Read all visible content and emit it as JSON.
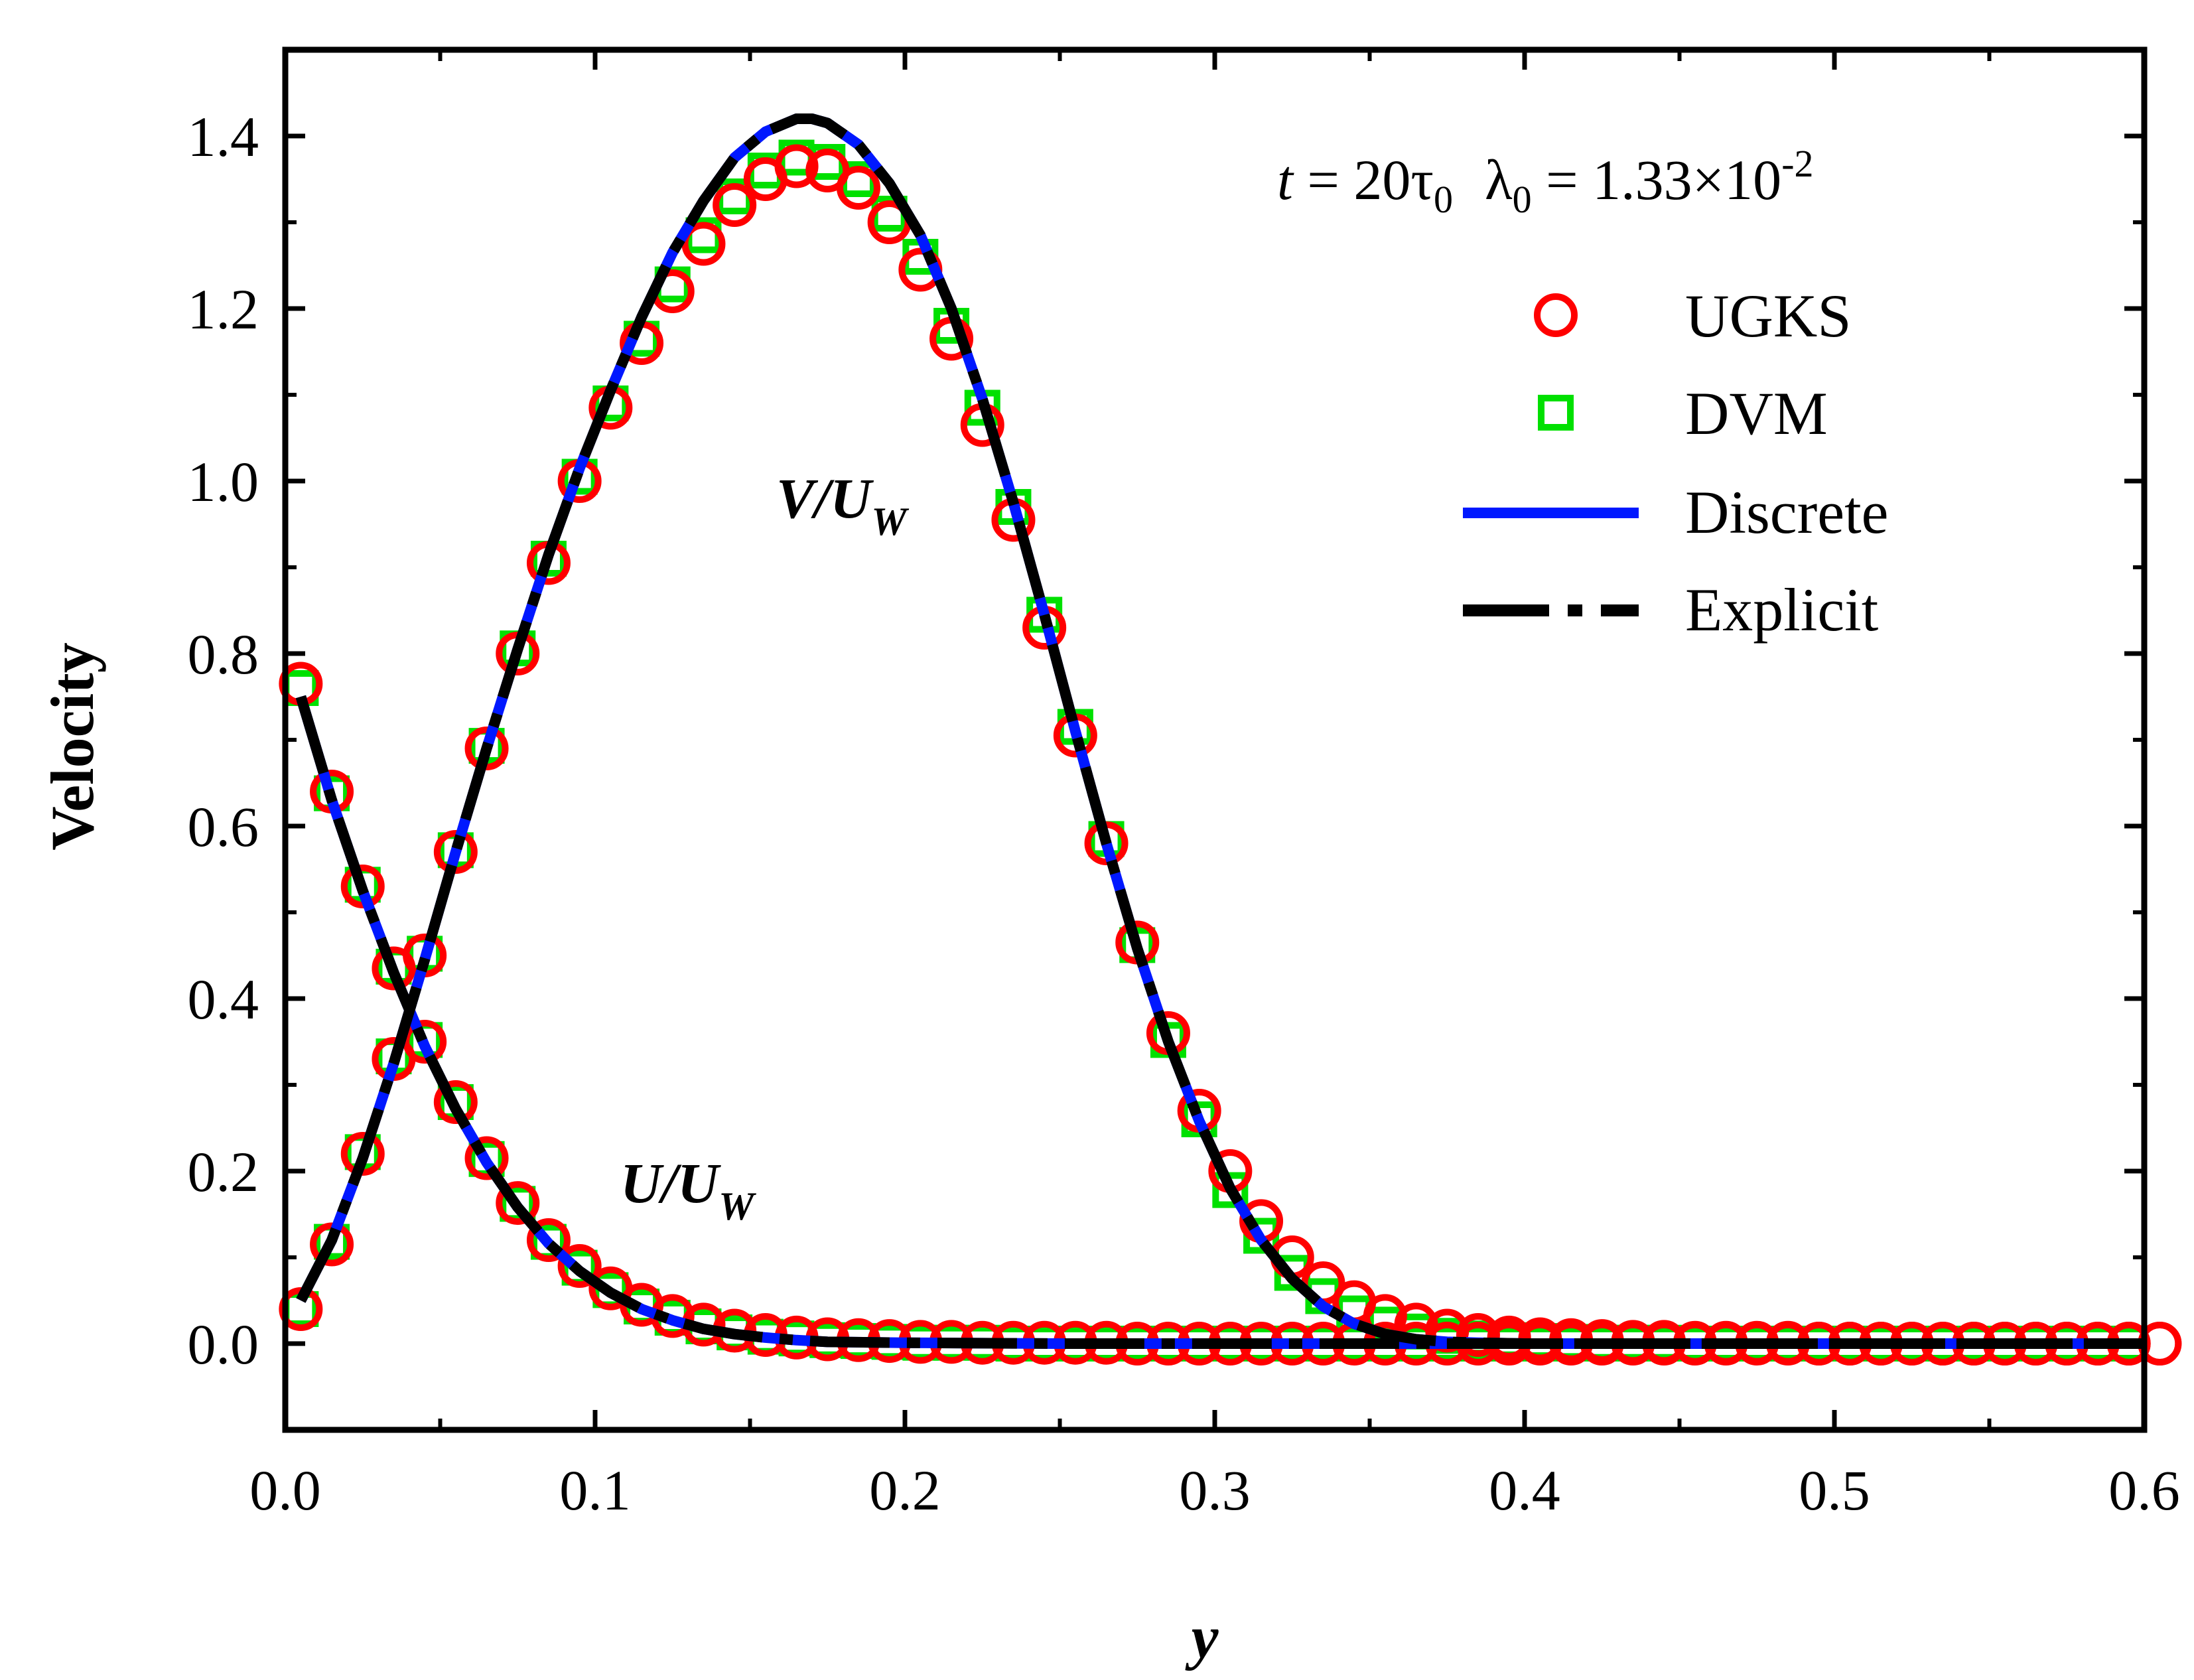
{
  "chart_data": {
    "type": "line",
    "title": "",
    "xlabel": "y",
    "ylabel": "Velocity",
    "xlim": [
      0.0,
      0.6
    ],
    "ylim": [
      -0.1,
      1.5
    ],
    "xticks": [
      {
        "value": 0.0,
        "label": "0.0"
      },
      {
        "value": 0.1,
        "label": "0.1"
      },
      {
        "value": 0.2,
        "label": "0.2"
      },
      {
        "value": 0.3,
        "label": "0.3"
      },
      {
        "value": 0.4,
        "label": "0.4"
      },
      {
        "value": 0.5,
        "label": "0.5"
      },
      {
        "value": 0.6,
        "label": "0.6"
      }
    ],
    "yticks": [
      {
        "value": 0.0,
        "label": "0.0"
      },
      {
        "value": 0.2,
        "label": "0.2"
      },
      {
        "value": 0.4,
        "label": "0.4"
      },
      {
        "value": 0.6,
        "label": "0.6"
      },
      {
        "value": 0.8,
        "label": "0.8"
      },
      {
        "value": 1.0,
        "label": "1.0"
      },
      {
        "value": 1.2,
        "label": "1.2"
      },
      {
        "value": 1.4,
        "label": "1.4"
      }
    ],
    "annotation": {
      "t_symbol": "t",
      "t_value": " = 20τ",
      "t_sub": "0",
      "lambda_symbol": "λ",
      "lambda_sub": "0",
      "lambda_value": " = 1.33×10",
      "lambda_sup": "-2"
    },
    "curve_labels": {
      "v": {
        "var": "V",
        "sep": "/",
        "base": "U",
        "sub": "W"
      },
      "u": {
        "var": "U",
        "sep": "/",
        "base": "U",
        "sub": "W"
      }
    },
    "legend": [
      {
        "name": "UGKS",
        "marker": "circle",
        "color": "#ff0000"
      },
      {
        "name": "DVM",
        "marker": "square",
        "color": "#00e000"
      },
      {
        "name": "Discrete",
        "marker": "solid-line",
        "color": "#0018ff"
      },
      {
        "name": "Explicit",
        "marker": "dash-dot-line",
        "color": "#000000"
      }
    ],
    "series": [
      {
        "name": "UGKS",
        "quantity": "U/U_W",
        "style": "circle",
        "color": "#ff0000",
        "x": [
          0.005,
          0.015,
          0.025,
          0.035,
          0.045,
          0.055,
          0.065,
          0.075,
          0.085,
          0.095,
          0.105,
          0.115,
          0.125,
          0.135,
          0.145,
          0.155,
          0.165,
          0.175,
          0.185,
          0.195,
          0.205,
          0.215,
          0.225,
          0.235,
          0.245,
          0.255,
          0.265,
          0.275,
          0.285,
          0.295,
          0.305,
          0.315,
          0.325,
          0.335,
          0.345,
          0.355,
          0.365,
          0.375,
          0.385,
          0.395,
          0.405,
          0.415,
          0.425,
          0.435,
          0.445,
          0.455,
          0.465,
          0.475,
          0.485,
          0.495,
          0.505,
          0.515,
          0.525,
          0.535,
          0.545,
          0.555,
          0.565,
          0.575,
          0.585,
          0.595,
          0.605
        ],
        "y": [
          0.765,
          0.64,
          0.53,
          0.435,
          0.35,
          0.28,
          0.215,
          0.163,
          0.12,
          0.09,
          0.064,
          0.045,
          0.032,
          0.022,
          0.015,
          0.01,
          0.007,
          0.005,
          0.004,
          0.003,
          0.002,
          0.002,
          0.001,
          0.001,
          0.001,
          0.001,
          0.001,
          0.0,
          0.0,
          0.0,
          0.0,
          0.0,
          0.0,
          0.0,
          0.0,
          0.0,
          0.0,
          0.0,
          0.0,
          0.0,
          0.0,
          0.0,
          0.0,
          0.0,
          0.0,
          0.0,
          0.0,
          0.0,
          0.0,
          0.0,
          0.0,
          0.0,
          0.0,
          0.0,
          0.0,
          0.0,
          0.0,
          0.0,
          0.0,
          0.0,
          0.0
        ]
      },
      {
        "name": "UGKS",
        "quantity": "V/U_W",
        "style": "circle",
        "color": "#ff0000",
        "x": [
          0.005,
          0.015,
          0.025,
          0.035,
          0.045,
          0.055,
          0.065,
          0.075,
          0.085,
          0.095,
          0.105,
          0.115,
          0.125,
          0.135,
          0.145,
          0.155,
          0.165,
          0.175,
          0.185,
          0.195,
          0.205,
          0.215,
          0.225,
          0.235,
          0.245,
          0.255,
          0.265,
          0.275,
          0.285,
          0.295,
          0.305,
          0.315,
          0.325,
          0.335,
          0.345,
          0.355,
          0.365,
          0.375,
          0.385,
          0.395,
          0.405,
          0.415,
          0.425,
          0.435,
          0.445,
          0.455,
          0.465,
          0.475,
          0.485,
          0.495,
          0.505,
          0.515,
          0.525,
          0.535,
          0.545,
          0.555,
          0.565,
          0.575,
          0.585,
          0.595,
          0.605
        ],
        "y": [
          0.04,
          0.115,
          0.22,
          0.33,
          0.45,
          0.57,
          0.69,
          0.8,
          0.905,
          1.0,
          1.085,
          1.16,
          1.22,
          1.275,
          1.32,
          1.35,
          1.365,
          1.36,
          1.34,
          1.3,
          1.245,
          1.165,
          1.065,
          0.955,
          0.83,
          0.705,
          0.58,
          0.465,
          0.36,
          0.27,
          0.2,
          0.142,
          0.1,
          0.07,
          0.048,
          0.032,
          0.022,
          0.015,
          0.01,
          0.007,
          0.005,
          0.004,
          0.003,
          0.002,
          0.002,
          0.001,
          0.001,
          0.001,
          0.001,
          0.0,
          0.0,
          0.0,
          0.0,
          0.0,
          0.0,
          0.0,
          0.0,
          0.0,
          0.0,
          0.0,
          0.0
        ]
      },
      {
        "name": "DVM",
        "quantity": "U/U_W",
        "style": "square",
        "color": "#00e000",
        "x": [
          0.005,
          0.015,
          0.025,
          0.035,
          0.045,
          0.055,
          0.065,
          0.075,
          0.085,
          0.095,
          0.105,
          0.115,
          0.125,
          0.135,
          0.145,
          0.155,
          0.165,
          0.175,
          0.185,
          0.195,
          0.205,
          0.215,
          0.225,
          0.235,
          0.245,
          0.255,
          0.265,
          0.275,
          0.285,
          0.295,
          0.305,
          0.315,
          0.325,
          0.335,
          0.345,
          0.355,
          0.365,
          0.375,
          0.385,
          0.395,
          0.405,
          0.415,
          0.425,
          0.435,
          0.445,
          0.455,
          0.465,
          0.475,
          0.485,
          0.495,
          0.505,
          0.515,
          0.525,
          0.535,
          0.545,
          0.555,
          0.565,
          0.575,
          0.585,
          0.595
        ],
        "y": [
          0.76,
          0.638,
          0.532,
          0.437,
          0.352,
          0.28,
          0.214,
          0.162,
          0.118,
          0.088,
          0.062,
          0.043,
          0.03,
          0.02,
          0.013,
          0.008,
          0.006,
          0.004,
          0.003,
          0.002,
          0.001,
          0.001,
          0.001,
          0.0,
          0.0,
          0.0,
          0.0,
          0.0,
          0.0,
          0.0,
          0.0,
          0.0,
          0.0,
          0.0,
          0.0,
          0.0,
          0.0,
          0.0,
          0.0,
          0.0,
          0.0,
          0.0,
          0.0,
          0.0,
          0.0,
          0.0,
          0.0,
          0.0,
          0.0,
          0.0,
          0.0,
          0.0,
          0.0,
          0.0,
          0.0,
          0.0,
          0.0,
          0.0,
          0.0,
          0.0
        ]
      },
      {
        "name": "DVM",
        "quantity": "V/U_W",
        "style": "square",
        "color": "#00e000",
        "x": [
          0.005,
          0.015,
          0.025,
          0.035,
          0.045,
          0.055,
          0.065,
          0.075,
          0.085,
          0.095,
          0.105,
          0.115,
          0.125,
          0.135,
          0.145,
          0.155,
          0.165,
          0.175,
          0.185,
          0.195,
          0.205,
          0.215,
          0.225,
          0.235,
          0.245,
          0.255,
          0.265,
          0.275,
          0.285,
          0.295,
          0.305,
          0.315,
          0.325,
          0.335,
          0.345,
          0.355,
          0.365,
          0.375,
          0.385,
          0.395,
          0.405,
          0.415,
          0.425,
          0.435,
          0.445,
          0.455,
          0.465,
          0.475,
          0.485,
          0.495,
          0.505,
          0.515,
          0.525,
          0.535,
          0.545,
          0.555,
          0.565,
          0.575,
          0.585,
          0.595
        ],
        "y": [
          0.04,
          0.118,
          0.222,
          0.333,
          0.452,
          0.572,
          0.693,
          0.806,
          0.91,
          1.005,
          1.09,
          1.165,
          1.228,
          1.285,
          1.33,
          1.36,
          1.375,
          1.37,
          1.35,
          1.31,
          1.26,
          1.18,
          1.085,
          0.97,
          0.845,
          0.715,
          0.585,
          0.462,
          0.352,
          0.26,
          0.178,
          0.125,
          0.082,
          0.055,
          0.035,
          0.022,
          0.014,
          0.009,
          0.006,
          0.004,
          0.003,
          0.002,
          0.001,
          0.001,
          0.001,
          0.0,
          0.0,
          0.0,
          0.0,
          0.0,
          0.0,
          0.0,
          0.0,
          0.0,
          0.0,
          0.0,
          0.0,
          0.0,
          0.0,
          0.0
        ]
      },
      {
        "name": "Discrete",
        "quantity": "U/U_W",
        "style": "solid",
        "color": "#0018ff",
        "x": [
          0.005,
          0.015,
          0.025,
          0.035,
          0.045,
          0.055,
          0.065,
          0.075,
          0.085,
          0.095,
          0.105,
          0.115,
          0.125,
          0.135,
          0.145,
          0.155,
          0.165,
          0.175,
          0.2,
          0.25,
          0.3,
          0.4,
          0.5,
          0.6
        ],
        "y": [
          0.75,
          0.63,
          0.525,
          0.43,
          0.345,
          0.272,
          0.21,
          0.158,
          0.116,
          0.084,
          0.059,
          0.04,
          0.027,
          0.017,
          0.011,
          0.007,
          0.004,
          0.002,
          0.001,
          0.0,
          0.0,
          0.0,
          0.0,
          0.0
        ]
      },
      {
        "name": "Discrete",
        "quantity": "V/U_W",
        "style": "solid",
        "color": "#0018ff",
        "x": [
          0.005,
          0.015,
          0.025,
          0.035,
          0.045,
          0.055,
          0.065,
          0.075,
          0.085,
          0.095,
          0.105,
          0.115,
          0.125,
          0.135,
          0.145,
          0.155,
          0.165,
          0.17,
          0.175,
          0.185,
          0.195,
          0.205,
          0.215,
          0.225,
          0.235,
          0.245,
          0.255,
          0.265,
          0.275,
          0.285,
          0.295,
          0.305,
          0.315,
          0.325,
          0.335,
          0.345,
          0.355,
          0.365,
          0.375,
          0.385,
          0.4,
          0.45,
          0.5,
          0.55,
          0.6
        ],
        "y": [
          0.05,
          0.12,
          0.215,
          0.325,
          0.445,
          0.57,
          0.69,
          0.805,
          0.915,
          1.015,
          1.105,
          1.19,
          1.265,
          1.325,
          1.375,
          1.405,
          1.42,
          1.42,
          1.415,
          1.39,
          1.345,
          1.285,
          1.2,
          1.095,
          0.975,
          0.845,
          0.71,
          0.58,
          0.458,
          0.35,
          0.258,
          0.18,
          0.12,
          0.075,
          0.043,
          0.023,
          0.011,
          0.005,
          0.002,
          0.001,
          0.0,
          0.0,
          0.0,
          0.0,
          0.0
        ]
      },
      {
        "name": "Explicit",
        "quantity": "U/U_W",
        "style": "dash-dot",
        "color": "#000000",
        "x": [
          0.005,
          0.015,
          0.025,
          0.035,
          0.045,
          0.055,
          0.065,
          0.075,
          0.085,
          0.095,
          0.105,
          0.115,
          0.125,
          0.135,
          0.145,
          0.155,
          0.165,
          0.175,
          0.2,
          0.25,
          0.3,
          0.4,
          0.5,
          0.6
        ],
        "y": [
          0.75,
          0.63,
          0.525,
          0.43,
          0.345,
          0.272,
          0.21,
          0.158,
          0.116,
          0.084,
          0.059,
          0.04,
          0.027,
          0.017,
          0.011,
          0.007,
          0.004,
          0.002,
          0.001,
          0.0,
          0.0,
          0.0,
          0.0,
          0.0
        ]
      },
      {
        "name": "Explicit",
        "quantity": "V/U_W",
        "style": "dash-dot",
        "color": "#000000",
        "x": [
          0.005,
          0.015,
          0.025,
          0.035,
          0.045,
          0.055,
          0.065,
          0.075,
          0.085,
          0.095,
          0.105,
          0.115,
          0.125,
          0.135,
          0.145,
          0.155,
          0.165,
          0.17,
          0.175,
          0.185,
          0.195,
          0.205,
          0.215,
          0.225,
          0.235,
          0.245,
          0.255,
          0.265,
          0.275,
          0.285,
          0.295,
          0.305,
          0.315,
          0.325,
          0.335,
          0.345,
          0.355,
          0.365,
          0.375,
          0.385,
          0.4,
          0.45,
          0.5,
          0.55,
          0.6
        ],
        "y": [
          0.05,
          0.12,
          0.215,
          0.325,
          0.445,
          0.57,
          0.69,
          0.805,
          0.915,
          1.015,
          1.105,
          1.19,
          1.265,
          1.325,
          1.375,
          1.405,
          1.42,
          1.42,
          1.415,
          1.39,
          1.345,
          1.285,
          1.2,
          1.095,
          0.975,
          0.845,
          0.71,
          0.58,
          0.458,
          0.35,
          0.258,
          0.18,
          0.12,
          0.075,
          0.043,
          0.023,
          0.011,
          0.005,
          0.002,
          0.001,
          0.0,
          0.0,
          0.0,
          0.0,
          0.0
        ]
      }
    ]
  }
}
